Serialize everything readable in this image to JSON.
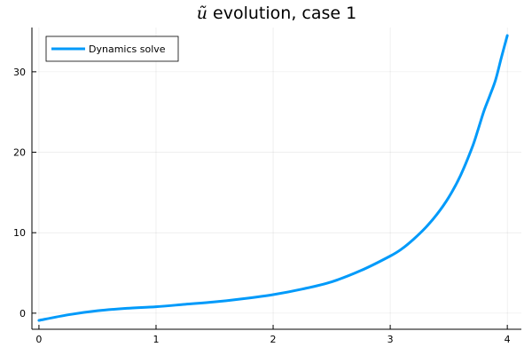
{
  "chart_data": {
    "type": "line",
    "title_var": "ũ",
    "title_rest": " evolution, case 1",
    "xlabel": "",
    "ylabel": "",
    "xlim": [
      -0.06,
      4.12
    ],
    "ylim": [
      -2.0,
      35.5
    ],
    "xticks": [
      0,
      1,
      2,
      3,
      4
    ],
    "xtick_labels": [
      "0",
      "1",
      "2",
      "3",
      "4"
    ],
    "yticks": [
      0,
      10,
      20,
      30
    ],
    "ytick_labels": [
      "0",
      "10",
      "20",
      "30"
    ],
    "grid": true,
    "legend_position": "top-left",
    "series": [
      {
        "name": "Dynamics solve",
        "color": "#009AFA",
        "x": [
          0.0,
          0.25,
          0.5,
          0.75,
          1.0,
          1.25,
          1.5,
          1.75,
          2.0,
          2.25,
          2.5,
          2.75,
          3.0,
          3.1,
          3.2,
          3.3,
          3.4,
          3.5,
          3.6,
          3.7,
          3.75,
          3.8,
          3.85,
          3.9,
          3.95,
          4.0
        ],
        "y": [
          -0.9,
          -0.2,
          0.3,
          0.6,
          0.8,
          1.1,
          1.4,
          1.8,
          2.3,
          3.0,
          3.9,
          5.3,
          7.1,
          8.0,
          9.2,
          10.6,
          12.3,
          14.4,
          17.1,
          20.6,
          22.8,
          25.1,
          27.0,
          29.0,
          31.8,
          34.5
        ]
      }
    ]
  }
}
